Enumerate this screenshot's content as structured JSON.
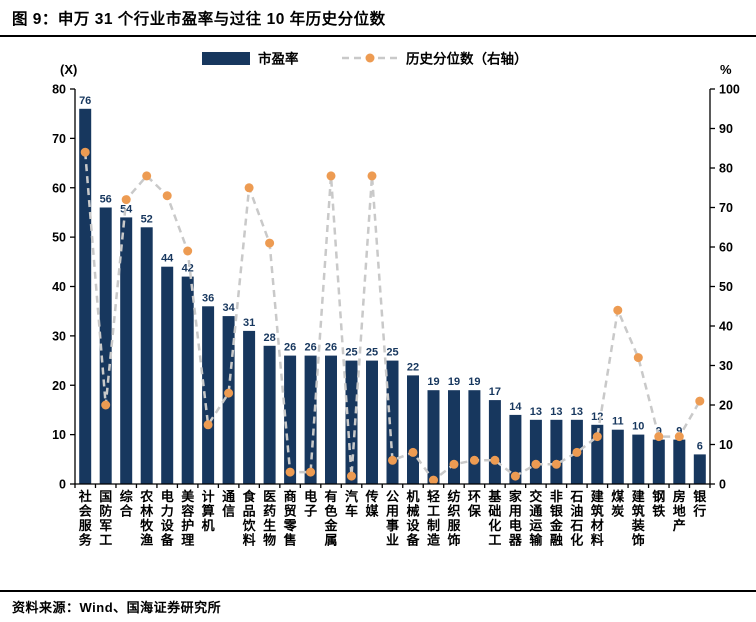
{
  "title": "图 9：申万 31 个行业市盈率与过往 10 年历史分位数",
  "source": "资料来源：Wind、国海证券研究所",
  "legend": {
    "bar": "市盈率",
    "line": "历史分位数（右轴）"
  },
  "colors": {
    "bar": "#17375E",
    "dot": "#ED9B52",
    "dashed_line": "#C9C9C9"
  },
  "axes": {
    "left_ticks": [
      0,
      10,
      20,
      30,
      40,
      50,
      60,
      70,
      80
    ],
    "right_ticks": [
      0,
      10,
      20,
      30,
      40,
      50,
      60,
      70,
      80,
      90,
      100
    ]
  },
  "chart_data": {
    "type": "bar",
    "title": "申万 31 个行业市盈率与过往 10 年历史分位数",
    "categories": [
      "社会服务",
      "国防军工",
      "综合",
      "农林牧渔",
      "电力设备",
      "美容护理",
      "计算机",
      "通信",
      "食品饮料",
      "医药生物",
      "商贸零售",
      "电子",
      "有色金属",
      "汽车",
      "传媒",
      "公用事业",
      "机械设备",
      "轻工制造",
      "纺织服饰",
      "环保",
      "基础化工",
      "家用电器",
      "交通运输",
      "非银金融",
      "石油石化",
      "建筑材料",
      "煤炭",
      "建筑装饰",
      "钢铁",
      "房地产",
      "银行"
    ],
    "series": [
      {
        "name": "市盈率",
        "type": "bar",
        "axis": "left",
        "values": [
          76,
          56,
          54,
          52,
          44,
          42,
          36,
          34,
          31,
          28,
          26,
          26,
          26,
          25,
          25,
          25,
          22,
          19,
          19,
          19,
          17,
          14,
          13,
          13,
          13,
          12,
          11,
          10,
          9,
          9,
          6
        ]
      },
      {
        "name": "历史分位数（右轴）",
        "type": "line",
        "axis": "right",
        "values": [
          84,
          20,
          72,
          78,
          73,
          59,
          15,
          23,
          75,
          61,
          3,
          3,
          78,
          2,
          78,
          6,
          8,
          1,
          5,
          6,
          6,
          2,
          5,
          5,
          8,
          12,
          44,
          32,
          12,
          12,
          21
        ]
      }
    ],
    "left_axis": {
      "label": "(X)",
      "min": 0,
      "max": 80,
      "step": 10
    },
    "right_axis": {
      "label": "%",
      "min": 0,
      "max": 100,
      "step": 10
    },
    "grid": false,
    "legend_position": "top"
  }
}
